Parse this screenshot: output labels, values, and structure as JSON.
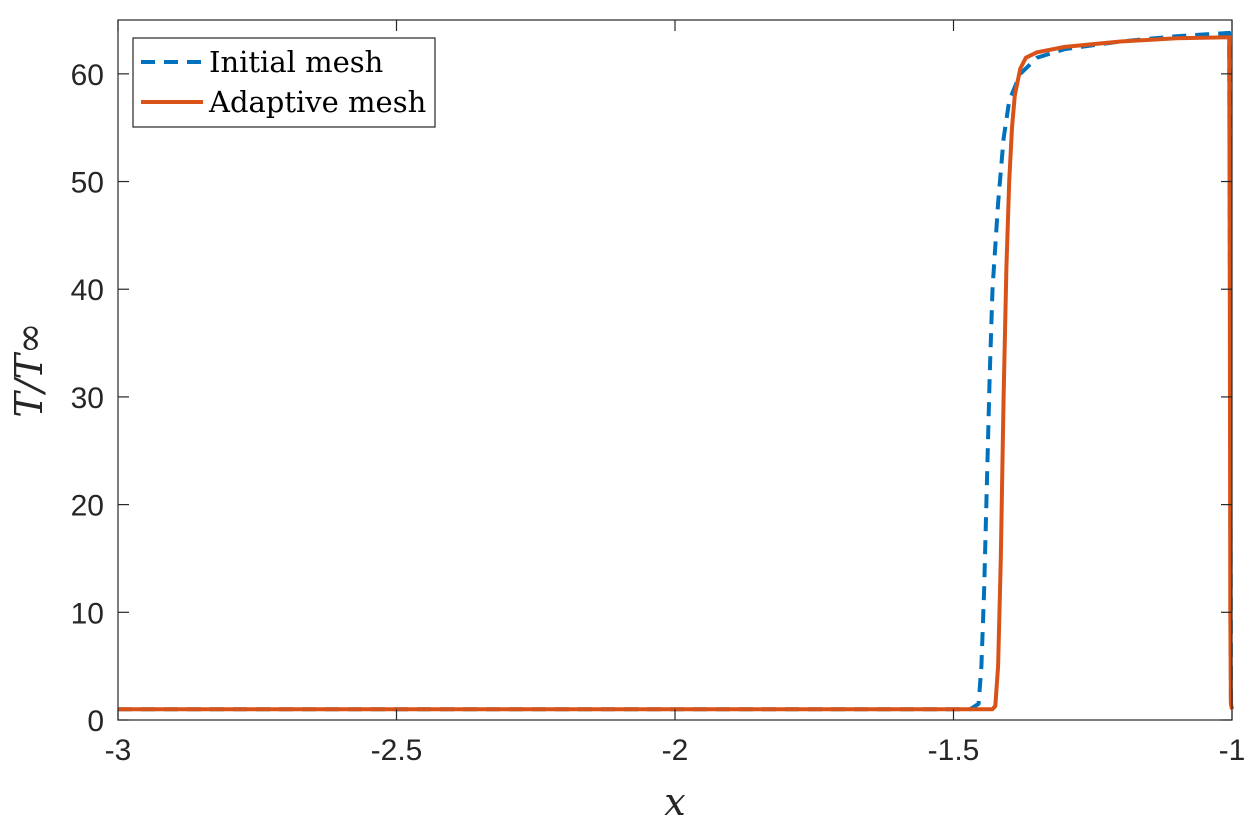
{
  "chart_data": {
    "type": "line",
    "title": "",
    "xlabel": "x",
    "ylabel": "T/T∞",
    "xlim": [
      -3,
      -1
    ],
    "ylim": [
      0,
      65
    ],
    "xticks": [
      -3,
      -2.5,
      -2,
      -1.5,
      -1
    ],
    "xtick_labels": [
      "-3",
      "-2.5",
      "-2",
      "-1.5",
      "-1"
    ],
    "yticks": [
      0,
      10,
      20,
      30,
      40,
      50,
      60
    ],
    "ytick_labels": [
      "0",
      "10",
      "20",
      "30",
      "40",
      "50",
      "60"
    ],
    "grid": false,
    "legend_position": "top-left",
    "series": [
      {
        "name": "Initial mesh",
        "color": "#0072BD",
        "style": "dashed",
        "points": [
          [
            -3,
            1
          ],
          [
            -1.47,
            1
          ],
          [
            -1.455,
            1.5
          ],
          [
            -1.45,
            5
          ],
          [
            -1.445,
            12
          ],
          [
            -1.44,
            22
          ],
          [
            -1.435,
            32
          ],
          [
            -1.43,
            40
          ],
          [
            -1.42,
            48
          ],
          [
            -1.41,
            54
          ],
          [
            -1.4,
            57.5
          ],
          [
            -1.38,
            60
          ],
          [
            -1.35,
            61.5
          ],
          [
            -1.3,
            62.3
          ],
          [
            -1.2,
            63
          ],
          [
            -1.1,
            63.5
          ],
          [
            -1.005,
            63.8
          ],
          [
            -1.003,
            30
          ],
          [
            -1.002,
            2
          ],
          [
            -1.001,
            1
          ]
        ]
      },
      {
        "name": "Adaptive mesh",
        "color": "#D95319",
        "style": "solid",
        "points": [
          [
            -3,
            1
          ],
          [
            -1.43,
            1
          ],
          [
            -1.425,
            1.3
          ],
          [
            -1.42,
            5
          ],
          [
            -1.415,
            15
          ],
          [
            -1.41,
            30
          ],
          [
            -1.405,
            42
          ],
          [
            -1.4,
            50
          ],
          [
            -1.395,
            55
          ],
          [
            -1.39,
            58
          ],
          [
            -1.38,
            60.5
          ],
          [
            -1.37,
            61.5
          ],
          [
            -1.35,
            62
          ],
          [
            -1.3,
            62.5
          ],
          [
            -1.2,
            63
          ],
          [
            -1.1,
            63.3
          ],
          [
            -1.005,
            63.4
          ],
          [
            -1.004,
            40
          ],
          [
            -1.003,
            10
          ],
          [
            -1.002,
            1.5
          ],
          [
            -1.0,
            1
          ]
        ]
      }
    ]
  }
}
